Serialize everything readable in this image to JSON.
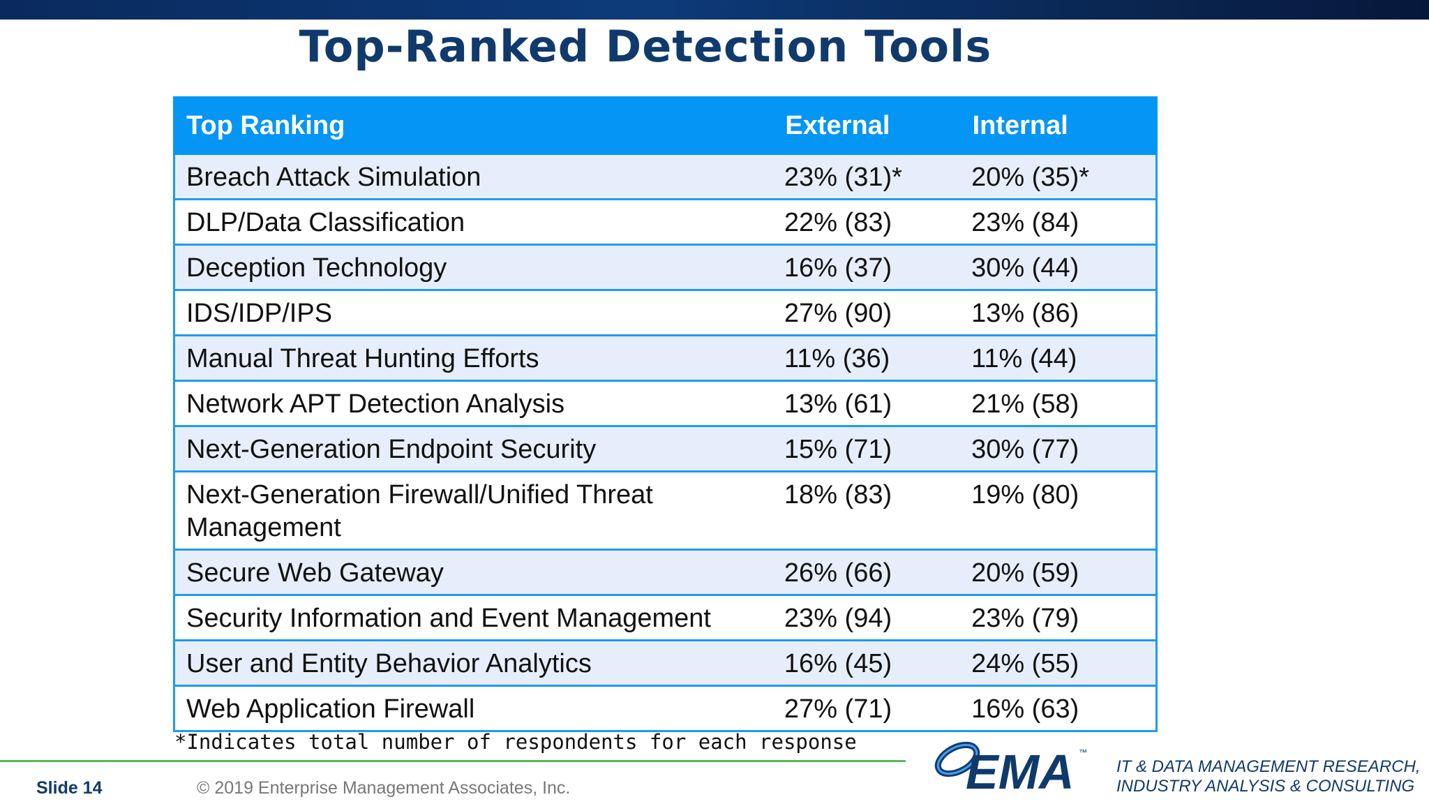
{
  "slide": {
    "title": "Top-Ranked Detection Tools",
    "footnote": "*Indicates total number of respondents for each response",
    "slide_label": "Slide  14",
    "copyright": "© 2019 Enterprise Management Associates, Inc."
  },
  "table": {
    "headers": [
      "Top Ranking",
      "External",
      "Internal"
    ],
    "rows": [
      [
        "Breach Attack Simulation",
        "23% (31)*",
        "20% (35)*"
      ],
      [
        "DLP/Data Classification",
        "22% (83)",
        "23% (84)"
      ],
      [
        "Deception Technology",
        "16% (37)",
        "30% (44)"
      ],
      [
        "IDS/IDP/IPS",
        "27% (90)",
        "13% (86)"
      ],
      [
        "Manual Threat Hunting Efforts",
        "11% (36)",
        "11% (44)"
      ],
      [
        "Network APT Detection Analysis",
        "13% (61)",
        "21% (58)"
      ],
      [
        "Next-Generation Endpoint Security",
        "15% (71)",
        "30% (77)"
      ],
      [
        "Next-Generation Firewall/Unified Threat Management",
        "18% (83)",
        "19% (80)"
      ],
      [
        "Secure Web Gateway",
        "26% (66)",
        "20% (59)"
      ],
      [
        "Security Information and Event Management",
        "23% (94)",
        "23% (79)"
      ],
      [
        "User and Entity Behavior Analytics",
        "16% (45)",
        "24% (55)"
      ],
      [
        "Web Application Firewall",
        "27% (71)",
        "16% (63)"
      ]
    ]
  },
  "logo": {
    "text": "EMA",
    "trademark": "™",
    "tagline_line1": "IT & DATA MANAGEMENT RESEARCH,",
    "tagline_line2": "INDUSTRY ANALYSIS & CONSULTING"
  },
  "colors": {
    "title": "#103a6b",
    "header_bg": "#0596f5",
    "row_alt_bg": "#e7eefb",
    "border": "#1e9af2",
    "green_rule": "#5bb75b"
  }
}
